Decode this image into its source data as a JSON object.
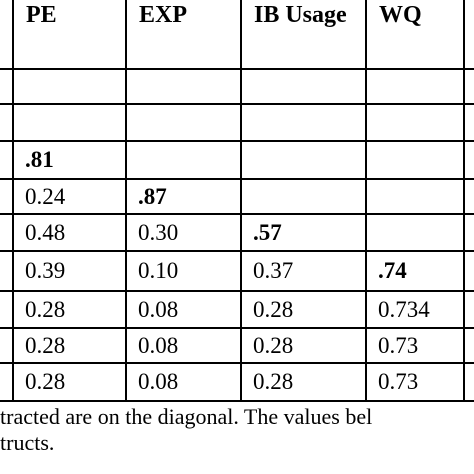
{
  "table": {
    "headers": [
      "PE",
      "EXP",
      "IB Usage",
      "WQ"
    ],
    "rows": [
      [],
      [],
      [
        ".81"
      ],
      [
        "0.24",
        ".87"
      ],
      [
        "0.48",
        "0.30",
        ".57"
      ],
      [
        "0.39",
        "0.10",
        "0.37",
        ".74"
      ],
      [
        "0.28",
        "0.08",
        "0.28",
        "0.734"
      ],
      [
        "0.28",
        "0.08",
        "0.28",
        "0.73"
      ],
      [
        "0.28",
        "0.08",
        "0.28",
        "0.73"
      ]
    ]
  },
  "footnote": [
    "tracted are on the diagonal. The values bel",
    "tructs."
  ]
}
